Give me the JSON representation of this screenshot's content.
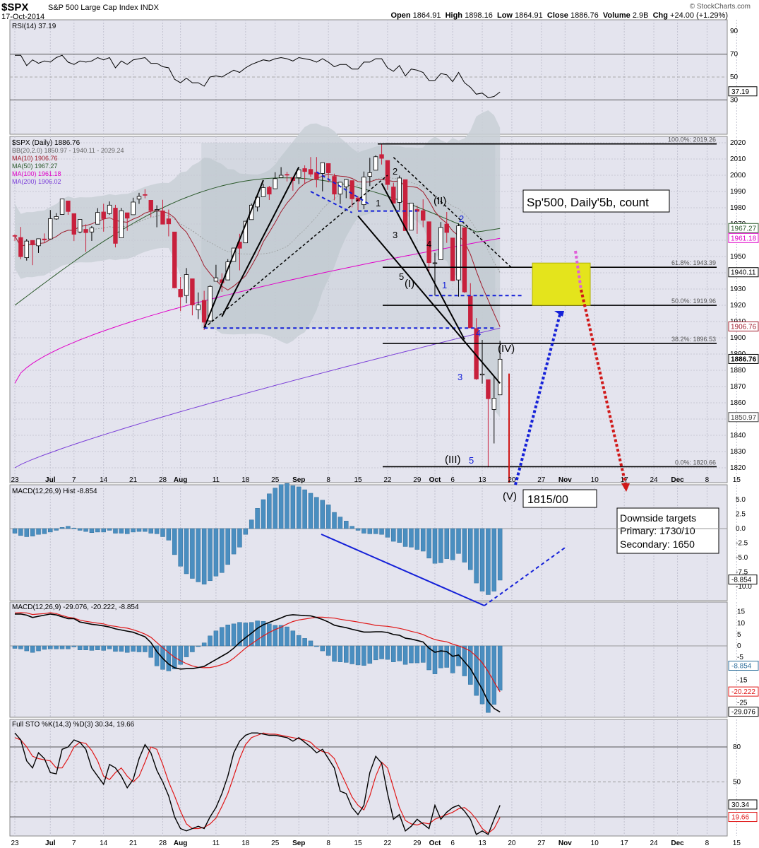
{
  "header": {
    "symbol": "$SPX",
    "name": "S&P 500 Large Cap Index",
    "exchange": "INDX",
    "date": "17-Oct-2014",
    "open_label": "Open",
    "open": "1864.91",
    "high_label": "High",
    "high": "1898.16",
    "low_label": "Low",
    "low": "1864.91",
    "close_label": "Close",
    "close": "1886.76",
    "volume_label": "Volume",
    "volume": "2.9B",
    "chg_label": "Chg",
    "chg": "+24.00 (+1.29%)",
    "watermark": "© StockCharts.com"
  },
  "colors": {
    "panel_bg": "#e4e4ee",
    "band": "#c9d0d6",
    "up": "#ffffff",
    "down": "#c8203c",
    "ma10": "#a01c2c",
    "ma50": "#2c5a2c",
    "ma100": "#e000c8",
    "ma200": "#7a3ed8",
    "hist": "#4a8ec0",
    "signal": "#e01818",
    "annot_blue": "#1420d8"
  },
  "chart_data": {
    "type": "candlestick",
    "title": "$SPX (Daily) 1886.76",
    "dates": [
      "Jun 23",
      "Jun 24",
      "Jun 25",
      "Jun 26",
      "Jun 27",
      "Jun 30",
      "Jul 1",
      "Jul 2",
      "Jul 3",
      "Jul 7",
      "Jul 8",
      "Jul 9",
      "Jul 10",
      "Jul 11",
      "Jul 14",
      "Jul 15",
      "Jul 16",
      "Jul 17",
      "Jul 18",
      "Jul 21",
      "Jul 22",
      "Jul 23",
      "Jul 24",
      "Jul 25",
      "Jul 28",
      "Jul 29",
      "Jul 30",
      "Jul 31",
      "Aug 1",
      "Aug 4",
      "Aug 5",
      "Aug 6",
      "Aug 7",
      "Aug 8",
      "Aug 11",
      "Aug 12",
      "Aug 13",
      "Aug 14",
      "Aug 15",
      "Aug 18",
      "Aug 19",
      "Aug 20",
      "Aug 21",
      "Aug 22",
      "Aug 25",
      "Aug 26",
      "Aug 27",
      "Aug 28",
      "Aug 29",
      "Sep 2",
      "Sep 3",
      "Sep 4",
      "Sep 5",
      "Sep 8",
      "Sep 9",
      "Sep 10",
      "Sep 11",
      "Sep 12",
      "Sep 15",
      "Sep 16",
      "Sep 17",
      "Sep 18",
      "Sep 19",
      "Sep 22",
      "Sep 23",
      "Sep 24",
      "Sep 25",
      "Sep 26",
      "Sep 29",
      "Sep 30",
      "Oct 1",
      "Oct 2",
      "Oct 3",
      "Oct 6",
      "Oct 7",
      "Oct 8",
      "Oct 9",
      "Oct 10",
      "Oct 13",
      "Oct 14",
      "Oct 15",
      "Oct 16",
      "Oct 17"
    ],
    "ohlc": [
      [
        1962.9,
        1963.7,
        1959.6,
        1962.6
      ],
      [
        1961.7,
        1968.2,
        1948.3,
        1949.9
      ],
      [
        1949.3,
        1960.8,
        1947.5,
        1959.5
      ],
      [
        1959.9,
        1959.9,
        1944.7,
        1957.2
      ],
      [
        1956.6,
        1961.0,
        1952.2,
        1960.9
      ],
      [
        1960.8,
        1964.2,
        1958.2,
        1960.2
      ],
      [
        1960.8,
        1978.6,
        1960.8,
        1973.3
      ],
      [
        1973.1,
        1976.7,
        1972.6,
        1974.6
      ],
      [
        1975.9,
        1985.6,
        1975.9,
        1985.4
      ],
      [
        1984.2,
        1984.2,
        1975.7,
        1977.7
      ],
      [
        1976.4,
        1976.4,
        1959.5,
        1963.7
      ],
      [
        1965.1,
        1972.6,
        1964.3,
        1972.8
      ],
      [
        1966.7,
        1969.8,
        1952.9,
        1964.7
      ],
      [
        1965.1,
        1968.7,
        1959.6,
        1967.6
      ],
      [
        1969.9,
        1979.8,
        1969.9,
        1977.1
      ],
      [
        1977.4,
        1982.5,
        1965.3,
        1973.3
      ],
      [
        1976.4,
        1983.9,
        1975.7,
        1981.6
      ],
      [
        1979.8,
        1981.8,
        1955.6,
        1958.1
      ],
      [
        1961.5,
        1979.9,
        1961.5,
        1978.2
      ],
      [
        1976.9,
        1976.9,
        1965.8,
        1973.6
      ],
      [
        1975.7,
        1986.2,
        1975.7,
        1983.5
      ],
      [
        1985.3,
        1989.2,
        1982.4,
        1987.0
      ],
      [
        1988.1,
        1991.4,
        1985.8,
        1987.9
      ],
      [
        1984.6,
        1984.6,
        1974.3,
        1978.3
      ],
      [
        1978.3,
        1981.5,
        1968.0,
        1978.9
      ],
      [
        1978.1,
        1984.9,
        1969.9,
        1969.9
      ],
      [
        1973.2,
        1978.9,
        1962.4,
        1970.1
      ],
      [
        1965.1,
        1965.1,
        1930.7,
        1930.7
      ],
      [
        1929.8,
        1937.4,
        1916.4,
        1925.2
      ],
      [
        1926.0,
        1942.9,
        1921.2,
        1938.9
      ],
      [
        1936.3,
        1936.3,
        1913.8,
        1920.2
      ],
      [
        1917.3,
        1927.9,
        1911.5,
        1920.2
      ],
      [
        1923.0,
        1928.9,
        1904.8,
        1909.6
      ],
      [
        1910.4,
        1932.4,
        1909.0,
        1931.6
      ],
      [
        1934.8,
        1944.9,
        1934.8,
        1936.9
      ],
      [
        1935.7,
        1939.7,
        1928.3,
        1933.8
      ],
      [
        1935.6,
        1948.4,
        1935.6,
        1946.7
      ],
      [
        1947.0,
        1955.2,
        1947.0,
        1955.2
      ],
      [
        1958.9,
        1964.0,
        1941.5,
        1955.1
      ],
      [
        1958.4,
        1971.9,
        1958.4,
        1971.7
      ],
      [
        1972.7,
        1982.6,
        1972.7,
        1981.6
      ],
      [
        1980.5,
        1988.6,
        1977.7,
        1986.5
      ],
      [
        1986.8,
        1994.8,
        1986.8,
        1992.4
      ],
      [
        1992.6,
        1993.5,
        1984.8,
        1988.4
      ],
      [
        1991.7,
        2001.9,
        1991.7,
        1997.9
      ],
      [
        1998.6,
        2005.0,
        1998.6,
        2000.0
      ],
      [
        2000.5,
        2002.1,
        1996.2,
        2000.1
      ],
      [
        1998.6,
        1998.6,
        1990.5,
        1996.7
      ],
      [
        1998.5,
        2003.4,
        1994.6,
        2003.4
      ],
      [
        2004.1,
        2006.1,
        1994.9,
        2002.3
      ],
      [
        2003.6,
        2011.2,
        1999.0,
        2000.7
      ],
      [
        2001.7,
        2011.2,
        1992.5,
        1997.7
      ],
      [
        2001.1,
        2007.7,
        1990.1,
        2007.7
      ],
      [
        2007.2,
        2007.2,
        1995.6,
        2001.5
      ],
      [
        1999.3,
        2001.0,
        1984.6,
        1988.4
      ],
      [
        1988.4,
        1996.0,
        1982.3,
        1995.7
      ],
      [
        1992.9,
        1997.7,
        1985.9,
        1997.4
      ],
      [
        1996.7,
        1996.7,
        1980.3,
        1985.5
      ],
      [
        1986.0,
        1987.2,
        1978.5,
        1984.1
      ],
      [
        1981.9,
        2002.3,
        1979.1,
        1998.9
      ],
      [
        1999.3,
        2010.7,
        1993.3,
        2001.6
      ],
      [
        2003.1,
        2012.3,
        2003.1,
        2011.4
      ],
      [
        2012.7,
        2019.3,
        2006.6,
        2010.4
      ],
      [
        2009.1,
        2009.1,
        1991.0,
        1994.3
      ],
      [
        1992.8,
        1995.4,
        1982.8,
        1982.8
      ],
      [
        1983.3,
        1999.8,
        1978.6,
        1998.3
      ],
      [
        1997.3,
        1997.3,
        1965.9,
        1965.9
      ],
      [
        1966.2,
        1982.7,
        1966.2,
        1982.9
      ],
      [
        1978.9,
        1981.3,
        1964.0,
        1977.8
      ],
      [
        1978.2,
        1985.2,
        1968.0,
        1972.3
      ],
      [
        1971.4,
        1971.4,
        1941.0,
        1946.2
      ],
      [
        1945.8,
        1952.3,
        1926.0,
        1946.1
      ],
      [
        1948.0,
        1971.2,
        1948.0,
        1967.9
      ],
      [
        1970.0,
        1977.4,
        1958.4,
        1964.8
      ],
      [
        1961.4,
        1961.4,
        1934.9,
        1935.1
      ],
      [
        1935.6,
        1970.4,
        1925.3,
        1968.9
      ],
      [
        1967.7,
        1967.7,
        1927.6,
        1928.2
      ],
      [
        1925.6,
        1933.6,
        1906.1,
        1906.1
      ],
      [
        1905.7,
        1912.1,
        1874.1,
        1874.7
      ],
      [
        1877.1,
        1898.7,
        1871.8,
        1877.7
      ],
      [
        1874.2,
        1874.2,
        1820.7,
        1862.5
      ],
      [
        1855.9,
        1876.0,
        1835.0,
        1862.8
      ],
      [
        1864.9,
        1898.2,
        1864.9,
        1886.8
      ]
    ],
    "bollinger": {
      "label": "BB(20,2.0) 1850.97 - 1940.11 - 2029.24",
      "mid": 1940.11,
      "upper": 2029.24,
      "lower": 1850.97
    },
    "moving_averages": [
      {
        "name": "MA(10) 1906.76",
        "last": 1906.76
      },
      {
        "name": "MA(50) 1967.27",
        "last": 1967.27
      },
      {
        "name": "MA(100) 1961.18",
        "last": 1961.18
      },
      {
        "name": "MA(200) 1906.02",
        "last": 1906.02
      }
    ],
    "x_ticks": [
      "23",
      "Jul",
      "7",
      "14",
      "21",
      "28",
      "Aug",
      "11",
      "18",
      "25",
      "Sep",
      "8",
      "15",
      "22",
      "29",
      "Oct",
      "6",
      "13",
      "20",
      "27",
      "Nov",
      "10",
      "17",
      "24",
      "Dec",
      "8",
      "15"
    ],
    "y_ticks_price": [
      1820,
      1830,
      1840,
      1850,
      1860,
      1870,
      1880,
      1890,
      1900,
      1910,
      1920,
      1930,
      1940,
      1950,
      1960,
      1970,
      1980,
      1990,
      2000,
      2010,
      2020
    ],
    "price_tags": [
      "1967.27",
      "1961.18",
      "1940.11",
      "1906.76",
      "1886.76",
      "1850.97"
    ],
    "fib": [
      {
        "label": "100.0%: 2019.26",
        "value": 2019.26
      },
      {
        "label": "61.8%: 1943.39",
        "value": 1943.39
      },
      {
        "label": "50.0%: 1919.96",
        "value": 1919.96
      },
      {
        "label": "38.2%: 1896.53",
        "value": 1896.53
      },
      {
        "label": "0.0%: 1820.66",
        "value": 1820.66
      }
    ],
    "annotations": {
      "box_title": "Sp'500, Daily'5b, count",
      "wave_labels": [
        "(I)",
        "(II)",
        "(III)",
        "(IV)",
        "(V)",
        "1",
        "2",
        "3",
        "4",
        "5",
        "1",
        "2",
        "3",
        "4",
        "5"
      ],
      "target_v": "1815/00",
      "downside_title": "Downside targets",
      "downside_primary": "Primary: 1730/10",
      "downside_secondary": "Secondary: 1650"
    },
    "rsi": {
      "label": "RSI(14) 37.19",
      "last": 37.19,
      "levels": [
        30,
        50,
        70
      ],
      "ticks": [
        30,
        50,
        70,
        90
      ],
      "values": [
        69,
        69,
        60,
        65,
        62,
        64,
        63,
        67,
        69,
        63,
        61,
        64,
        63,
        64,
        67,
        65,
        67,
        58,
        64,
        61,
        65,
        66,
        67,
        62,
        62,
        59,
        58,
        48,
        45,
        49,
        45,
        45,
        42,
        50,
        51,
        50,
        53,
        56,
        54,
        58,
        61,
        63,
        65,
        64,
        66,
        67,
        66,
        64,
        67,
        66,
        65,
        63,
        66,
        63,
        59,
        61,
        61,
        57,
        57,
        63,
        63,
        66,
        66,
        58,
        55,
        60,
        51,
        57,
        56,
        54,
        47,
        47,
        53,
        52,
        46,
        54,
        45,
        41,
        35,
        36,
        32,
        33,
        37
      ]
    },
    "macd_hist_top": {
      "label": "MACD(12,26,9) Hist -8.854",
      "last": -8.854,
      "ticks": [
        5.0,
        2.5,
        0.0,
        -2.5,
        -5.0,
        -7.5,
        -10.0
      ],
      "values": [
        -0.8,
        -1.2,
        -1.4,
        -1.3,
        -1.0,
        -0.9,
        -0.6,
        -0.3,
        0.2,
        0.4,
        0.1,
        -0.3,
        -0.5,
        -0.7,
        -0.6,
        -0.6,
        -0.3,
        -0.8,
        -0.8,
        -0.9,
        -0.6,
        -0.5,
        -0.5,
        -0.8,
        -0.9,
        -1.4,
        -2.0,
        -4.5,
        -6.5,
        -7.8,
        -8.6,
        -9.2,
        -9.6,
        -9.0,
        -8.2,
        -7.6,
        -6.2,
        -4.4,
        -3.2,
        -1.0,
        1.5,
        3.5,
        5.0,
        6.0,
        7.0,
        7.6,
        7.8,
        7.4,
        7.2,
        6.7,
        6.1,
        5.4,
        4.9,
        4.1,
        2.8,
        2.0,
        1.3,
        0.4,
        -0.3,
        -0.8,
        -0.9,
        -0.9,
        -1.0,
        -1.5,
        -2.2,
        -2.4,
        -3.1,
        -3.2,
        -3.6,
        -3.9,
        -5.1,
        -6.0,
        -5.9,
        -5.2,
        -5.4,
        -4.3,
        -5.8,
        -7.1,
        -9.4,
        -10.8,
        -11.4,
        -10.8,
        -8.9
      ]
    },
    "macd": {
      "label": "MACD(12,26,9) -29.076, -20.222, -8.854",
      "macd_last": -29.076,
      "signal_last": -20.222,
      "hist_last": -8.854,
      "ticks": [
        15,
        10,
        5,
        0,
        -5,
        -10,
        -15,
        -20,
        -25
      ],
      "price_tags": [
        "-8.854",
        "-20.222",
        "-29.076"
      ],
      "macd_values": [
        14,
        14,
        13.5,
        12.5,
        13,
        13.5,
        14,
        13.6,
        12.8,
        12,
        12,
        10.5,
        10,
        9.5,
        9.2,
        8.8,
        8.3,
        7.5,
        7.0,
        6.5,
        6.0,
        5.0,
        4.0,
        1.5,
        -2.5,
        -5.5,
        -8.0,
        -9.6,
        -10.2,
        -10.0,
        -10.0,
        -9.5,
        -9.0,
        -7.5,
        -6.0,
        -4.5,
        -3.0,
        -1.0,
        1.5,
        3.6,
        5.6,
        7.7,
        9.3,
        10.3,
        11.3,
        12.3,
        13.4,
        13.7,
        13.5,
        13.3,
        13.2,
        12.5,
        11.6,
        10.5,
        9.1,
        8.5,
        8.0,
        7.3,
        6.7,
        6.1,
        6.1,
        6.2,
        6.2,
        5.9,
        5.0,
        4.7,
        3.4,
        3.0,
        2.4,
        1.7,
        -1.0,
        -2.8,
        -2.2,
        -2.5,
        -4.6,
        -4.0,
        -7.0,
        -10.0,
        -14.5,
        -19.0,
        -24.5,
        -27.5,
        -29.076
      ],
      "signal_values": [
        14.5,
        14.6,
        14.5,
        13.8,
        14,
        14.2,
        14.6,
        14.2,
        13.4,
        12.6,
        12.2,
        11.3,
        10.8,
        10.4,
        10.0,
        9.7,
        8.9,
        8.6,
        8.1,
        7.8,
        7.1,
        6.2,
        5.2,
        3.8,
        1.5,
        -0.8,
        -3.0,
        -5.0,
        -6.5,
        -7.8,
        -8.8,
        -9.4,
        -9.6,
        -9.5,
        -9.0,
        -8.2,
        -7.2,
        -5.4,
        -3.2,
        -1.0,
        0.9,
        2.7,
        4.4,
        5.9,
        7.2,
        8.2,
        9.6,
        10.7,
        11.4,
        11.8,
        12.2,
        12.6,
        12.6,
        12.4,
        12.2,
        11.7,
        11.3,
        10.9,
        10.5,
        10.0,
        9.6,
        9.0,
        8.8,
        8.6,
        8.2,
        7.7,
        7.1,
        6.4,
        5.8,
        5.0,
        3.8,
        2.8,
        2.2,
        1.8,
        0.8,
        0.0,
        -1.0,
        -2.3,
        -4.6,
        -7.4,
        -11.2,
        -15.8,
        -20.222
      ]
    },
    "stochastic": {
      "label": "Full STO %K(14,3) %D(3) 30.34, 19.66",
      "k_last": 30.34,
      "d_last": 19.66,
      "levels": [
        20,
        50,
        80
      ],
      "ticks": [
        50,
        80
      ],
      "price_tags": [
        "30.34",
        "19.66"
      ],
      "k_values": [
        92,
        86,
        68,
        62,
        75,
        70,
        58,
        57,
        78,
        80,
        86,
        84,
        78,
        62,
        55,
        48,
        65,
        62,
        55,
        45,
        52,
        70,
        82,
        75,
        60,
        50,
        38,
        20,
        10,
        8,
        10,
        12,
        10,
        20,
        28,
        40,
        55,
        75,
        85,
        90,
        92,
        92,
        91,
        90,
        90,
        89,
        88,
        85,
        88,
        84,
        80,
        75,
        78,
        70,
        62,
        42,
        40,
        28,
        22,
        30,
        58,
        72,
        66,
        40,
        18,
        22,
        8,
        12,
        18,
        14,
        10,
        30,
        18,
        24,
        28,
        30,
        25,
        18,
        5,
        8,
        5,
        18,
        30
      ],
      "d_values": [
        88,
        86,
        80,
        72,
        70,
        69,
        68,
        62,
        62,
        70,
        80,
        84,
        83,
        77,
        68,
        55,
        52,
        58,
        62,
        55,
        50,
        55,
        67,
        80,
        78,
        65,
        50,
        38,
        25,
        14,
        10,
        10,
        11,
        14,
        19,
        29,
        40,
        55,
        70,
        82,
        88,
        90,
        92,
        91,
        91,
        90,
        89,
        88,
        87,
        86,
        84,
        79,
        76,
        75,
        70,
        59,
        48,
        37,
        30,
        26,
        38,
        55,
        67,
        62,
        45,
        28,
        17,
        14,
        13,
        15,
        14,
        18,
        20,
        22,
        24,
        27,
        28,
        24,
        18,
        10,
        6,
        10,
        19.66
      ]
    }
  }
}
